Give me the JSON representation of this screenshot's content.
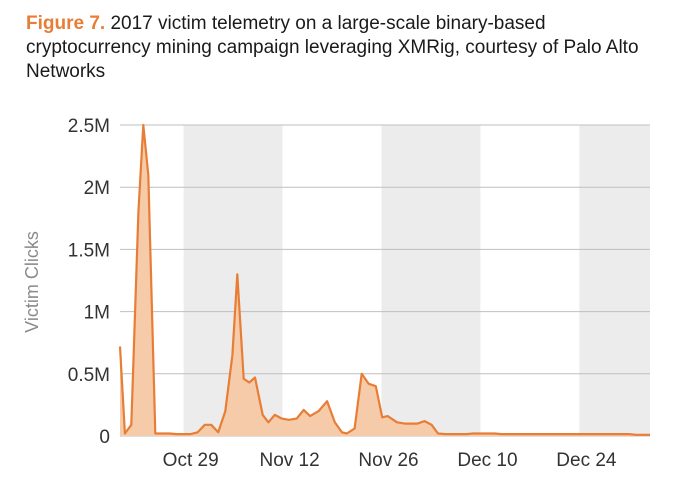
{
  "caption": {
    "label": "Figure 7.",
    "text": "2017 victim telemetry on a large-scale binary-based cryptocurrency mining campaign leveraging XMRig, courtesy of Palo Alto Networks"
  },
  "colors": {
    "accent": "#e87d36",
    "fill": "#f6cba9",
    "band": "#ececec",
    "grid": "#bfbfbf"
  },
  "chart_data": {
    "type": "area",
    "ylabel": "Victim Clicks",
    "xlabel": "",
    "ylim": [
      0,
      2500000
    ],
    "yticks": [
      {
        "value": 0,
        "label": "0"
      },
      {
        "value": 500000,
        "label": "0.5M"
      },
      {
        "value": 1000000,
        "label": "1M"
      },
      {
        "value": 1500000,
        "label": "1.5M"
      },
      {
        "value": 2000000,
        "label": "2M"
      },
      {
        "value": 2500000,
        "label": "2.5M"
      }
    ],
    "xlim": [
      0,
      75
    ],
    "xticks": [
      {
        "value": 10,
        "label": "Oct 29"
      },
      {
        "value": 24,
        "label": "Nov 12"
      },
      {
        "value": 38,
        "label": "Nov 26"
      },
      {
        "value": 52,
        "label": "Dec 10"
      },
      {
        "value": 66,
        "label": "Dec 24"
      }
    ],
    "shaded_bands": [
      [
        9,
        23
      ],
      [
        37,
        51
      ],
      [
        65,
        75
      ]
    ],
    "grid": true,
    "legend": "none",
    "series": [
      {
        "x": [
          0,
          0.7,
          1.6,
          2.6,
          3.3,
          4,
          5,
          6,
          7,
          8,
          9,
          10,
          11,
          12,
          12.9,
          13.9,
          14.9,
          15.9,
          16.6,
          17.5,
          18.3,
          19.1,
          20.2,
          21,
          21.9,
          22.9,
          23.9,
          25,
          26,
          26.9,
          28.1,
          29.3,
          30.4,
          31.4,
          32.1,
          33.2,
          34.2,
          35.2,
          36.2,
          37.1,
          37.9,
          39.2,
          40.3,
          41.1,
          42.1,
          43.1,
          44.1,
          45,
          46,
          47,
          48,
          49,
          50,
          51,
          52,
          53,
          54,
          55,
          56,
          57,
          58,
          59,
          60,
          61,
          62,
          63,
          64,
          65,
          66,
          67,
          68,
          69,
          70,
          71,
          72,
          73,
          74,
          75
        ],
        "y": [
          720000,
          20000,
          90000,
          1800000,
          2500000,
          2100000,
          20000,
          20000,
          20000,
          15000,
          15000,
          15000,
          30000,
          90000,
          90000,
          30000,
          200000,
          650000,
          1300000,
          460000,
          430000,
          470000,
          170000,
          110000,
          170000,
          140000,
          130000,
          140000,
          210000,
          160000,
          200000,
          280000,
          110000,
          30000,
          20000,
          60000,
          500000,
          420000,
          400000,
          150000,
          160000,
          110000,
          100000,
          100000,
          100000,
          120000,
          90000,
          20000,
          15000,
          15000,
          15000,
          15000,
          20000,
          20000,
          20000,
          20000,
          15000,
          15000,
          15000,
          15000,
          15000,
          15000,
          15000,
          15000,
          15000,
          15000,
          15000,
          15000,
          15000,
          15000,
          15000,
          15000,
          15000,
          15000,
          15000,
          10000,
          10000,
          10000
        ]
      }
    ]
  }
}
